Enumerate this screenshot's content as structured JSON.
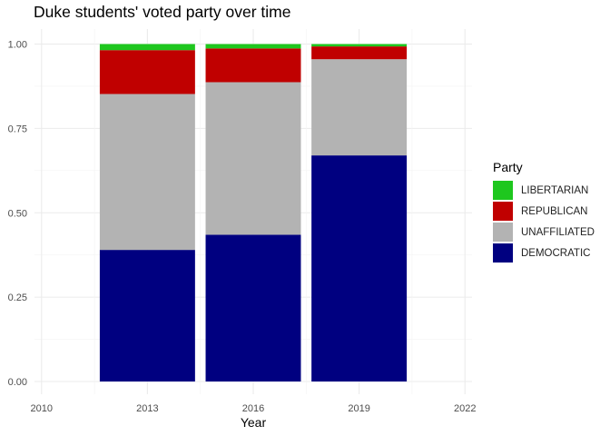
{
  "chart_data": {
    "type": "bar",
    "stacked": true,
    "title": "Duke students' voted party over time",
    "xlabel": "Year",
    "ylabel": "",
    "x": [
      2013,
      2016,
      2019
    ],
    "xticks": [
      "2010",
      "2013",
      "2016",
      "2019",
      "2022"
    ],
    "yticks": [
      "0.00",
      "0.25",
      "0.50",
      "0.75",
      "1.00"
    ],
    "xlim": [
      2009.8,
      2022.2
    ],
    "ylim": [
      0,
      1.0
    ],
    "grid": true,
    "legend": {
      "title": "Party",
      "position": "right"
    },
    "series": [
      {
        "name": "DEMOCRATIC",
        "color": "#000080",
        "values": [
          0.39,
          0.435,
          0.67
        ]
      },
      {
        "name": "UNAFFILIATED",
        "color": "#b3b3b3",
        "values": [
          0.462,
          0.452,
          0.285
        ]
      },
      {
        "name": "REPUBLICAN",
        "color": "#c00000",
        "values": [
          0.13,
          0.1,
          0.038
        ]
      },
      {
        "name": "LIBERTARIAN",
        "color": "#1ec71e",
        "values": [
          0.018,
          0.013,
          0.007
        ]
      }
    ],
    "legend_order": [
      "LIBERTARIAN",
      "REPUBLICAN",
      "UNAFFILIATED",
      "DEMOCRATIC"
    ]
  }
}
